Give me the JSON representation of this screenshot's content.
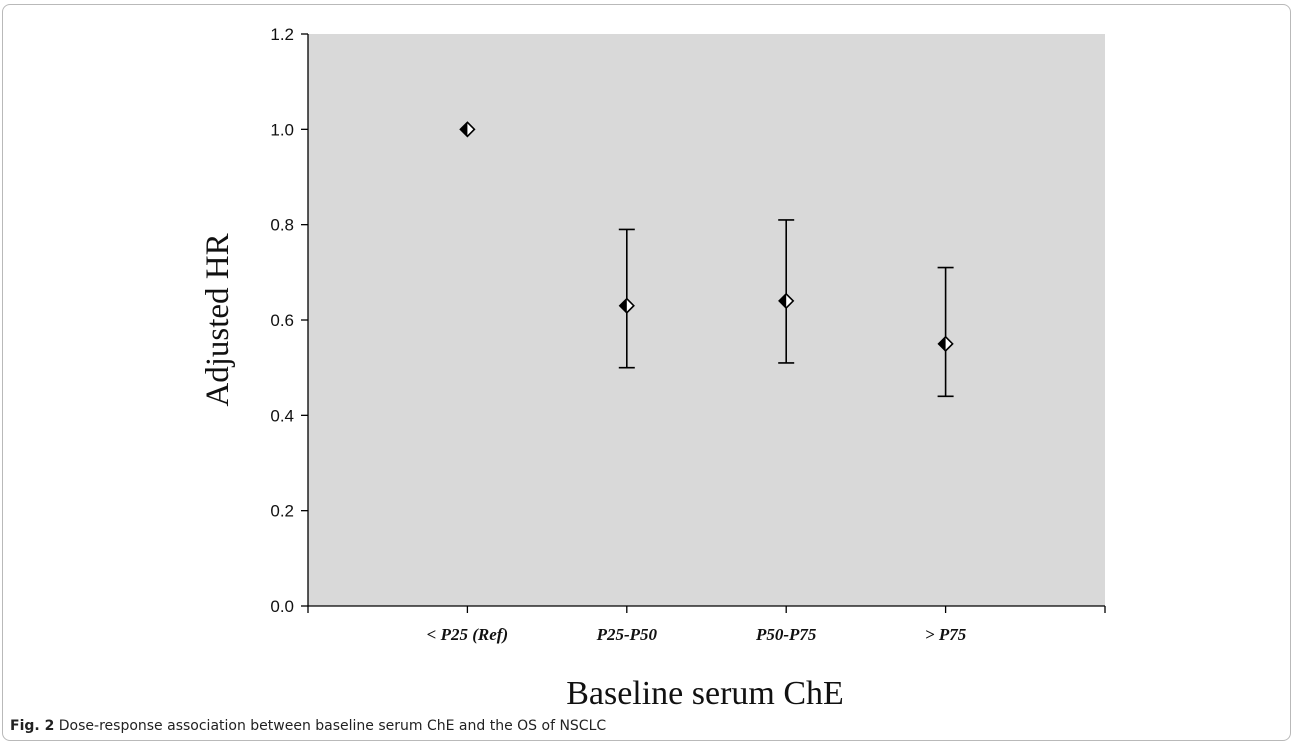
{
  "chart_data": {
    "type": "scatter",
    "xlabel": "Baseline serum ChE",
    "ylabel": "Adjusted HR",
    "categories": [
      "< P25 (Ref)",
      "P25-P50",
      "P50-P75",
      "> P75"
    ],
    "values": [
      1.0,
      0.63,
      0.64,
      0.55
    ],
    "ci_lower": [
      null,
      0.5,
      0.51,
      0.44
    ],
    "ci_upper": [
      null,
      0.79,
      0.81,
      0.71
    ],
    "ylim": [
      0,
      1.2
    ],
    "yticks": [
      "0.0",
      "0.2",
      "0.4",
      "0.6",
      "0.8",
      "1.0",
      "1.2"
    ],
    "grid": false,
    "plot_background": "#d9d9d9",
    "marker": "diamond"
  },
  "caption": {
    "label": "Fig. 2",
    "text": "Dose-response association between baseline serum ChE and the OS of NSCLC"
  }
}
